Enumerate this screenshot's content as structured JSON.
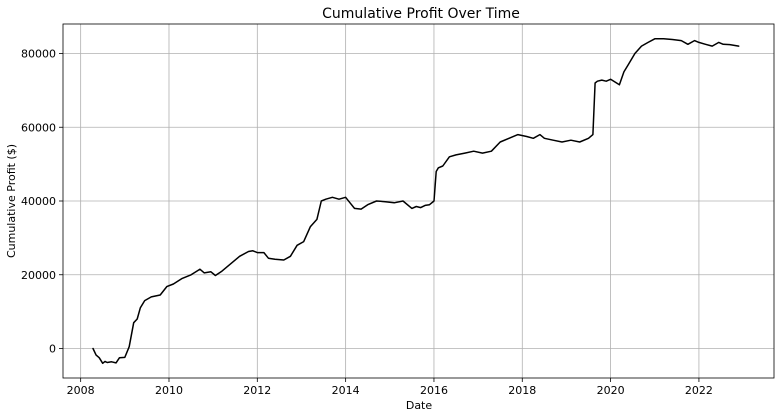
{
  "chart_data": {
    "type": "line",
    "title": "Cumulative Profit Over Time",
    "xlabel": "Date",
    "ylabel": "Cumulative Profit ($)",
    "xlim": [
      2007.6,
      2023.7
    ],
    "ylim": [
      -8000,
      88000
    ],
    "grid": true,
    "x_ticks": [
      2008,
      2010,
      2012,
      2014,
      2016,
      2018,
      2020,
      2022
    ],
    "x_tick_labels": [
      "2008",
      "2010",
      "2012",
      "2014",
      "2016",
      "2018",
      "2020",
      "2022"
    ],
    "y_ticks": [
      0,
      20000,
      40000,
      60000,
      80000
    ],
    "y_tick_labels": [
      "0",
      "20000",
      "40000",
      "60000",
      "80000"
    ],
    "series": [
      {
        "color": "#000000",
        "x": [
          2008.28,
          2008.35,
          2008.42,
          2008.5,
          2008.55,
          2008.6,
          2008.7,
          2008.8,
          2008.88,
          2009.0,
          2009.1,
          2009.2,
          2009.28,
          2009.35,
          2009.45,
          2009.6,
          2009.8,
          2009.95,
          2010.1,
          2010.3,
          2010.5,
          2010.7,
          2010.8,
          2010.95,
          2011.05,
          2011.2,
          2011.4,
          2011.6,
          2011.8,
          2011.9,
          2012.0,
          2012.15,
          2012.25,
          2012.4,
          2012.6,
          2012.75,
          2012.9,
          2013.05,
          2013.2,
          2013.35,
          2013.45,
          2013.55,
          2013.7,
          2013.85,
          2014.0,
          2014.1,
          2014.2,
          2014.35,
          2014.5,
          2014.7,
          2014.9,
          2015.1,
          2015.3,
          2015.5,
          2015.6,
          2015.7,
          2015.8,
          2015.9,
          2016.0,
          2016.05,
          2016.1,
          2016.2,
          2016.35,
          2016.5,
          2016.7,
          2016.9,
          2017.1,
          2017.3,
          2017.5,
          2017.7,
          2017.9,
          2018.1,
          2018.25,
          2018.4,
          2018.5,
          2018.7,
          2018.9,
          2019.1,
          2019.3,
          2019.5,
          2019.6,
          2019.65,
          2019.7,
          2019.8,
          2019.9,
          2020.0,
          2020.2,
          2020.3,
          2020.4,
          2020.55,
          2020.7,
          2020.85,
          2021.0,
          2021.2,
          2021.4,
          2021.6,
          2021.75,
          2021.9,
          2022.0,
          2022.15,
          2022.3,
          2022.45,
          2022.55,
          2022.7,
          2022.9
        ],
        "y": [
          0,
          -1800,
          -2500,
          -4000,
          -3500,
          -3800,
          -3600,
          -3900,
          -2500,
          -2400,
          500,
          7000,
          8000,
          11000,
          13000,
          14000,
          14500,
          16800,
          17500,
          19000,
          20000,
          21500,
          20500,
          20800,
          19800,
          21000,
          23000,
          25000,
          26300,
          26500,
          26000,
          26000,
          24500,
          24200,
          24000,
          25000,
          28000,
          29000,
          33000,
          35000,
          40000,
          40500,
          41000,
          40500,
          41000,
          39500,
          38000,
          37800,
          39000,
          40000,
          39800,
          39500,
          40000,
          38000,
          38500,
          38200,
          38800,
          39000,
          40000,
          48000,
          49000,
          49500,
          52000,
          52500,
          53000,
          53500,
          53000,
          53500,
          56000,
          57000,
          58000,
          57500,
          57000,
          58000,
          57000,
          56500,
          56000,
          56500,
          56000,
          57000,
          58000,
          72000,
          72500,
          72800,
          72500,
          73000,
          71500,
          75000,
          77000,
          80000,
          82000,
          83000,
          84000,
          84000,
          83800,
          83500,
          82500,
          83500,
          83000,
          82500,
          82000,
          83000,
          82500,
          82400,
          82000
        ]
      }
    ]
  }
}
